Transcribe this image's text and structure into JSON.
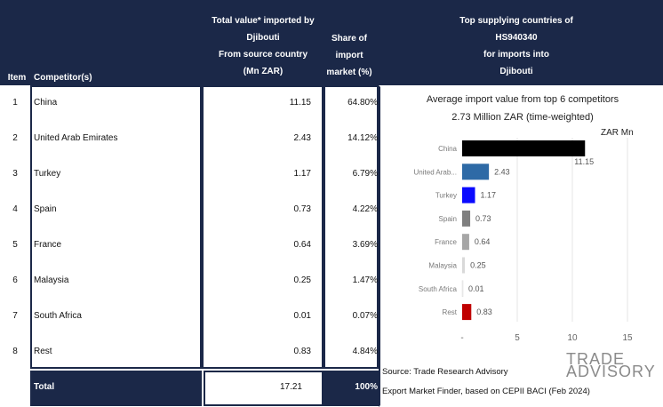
{
  "header": {
    "item": "Item",
    "competitor": "Competitor(s)",
    "total_lines": [
      "Total value* imported by",
      "Djibouti",
      "From source country",
      "(Mn ZAR)"
    ],
    "share_lines": [
      "Share of",
      "import",
      "market (%)"
    ],
    "top_lines": [
      "Top supplying countries of",
      "HS940340",
      "for imports into",
      "Djibouti"
    ]
  },
  "rows": [
    {
      "item": "1",
      "competitor": "China",
      "value": "11.15",
      "share": "64.80%"
    },
    {
      "item": "2",
      "competitor": "United Arab Emirates",
      "value": "2.43",
      "share": "14.12%"
    },
    {
      "item": "3",
      "competitor": "Turkey",
      "value": "1.17",
      "share": "6.79%"
    },
    {
      "item": "4",
      "competitor": "Spain",
      "value": "0.73",
      "share": "4.22%"
    },
    {
      "item": "5",
      "competitor": "France",
      "value": "0.64",
      "share": "3.69%"
    },
    {
      "item": "6",
      "competitor": "Malaysia",
      "value": "0.25",
      "share": "1.47%"
    },
    {
      "item": "7",
      "competitor": "South Africa",
      "value": "0.01",
      "share": "0.07%"
    },
    {
      "item": "8",
      "competitor": "Rest",
      "value": "0.83",
      "share": "4.84%"
    }
  ],
  "total": {
    "label": "Total",
    "value": "17.21",
    "share": "100%"
  },
  "chart_data": {
    "type": "bar",
    "orientation": "horizontal",
    "title": "Average import value from top 6 competitors",
    "subtitle": "2.73 Million ZAR (time-weighted)",
    "unit_label": "ZAR Mn",
    "categories": [
      "China",
      "United Arab...",
      "Turkey",
      "Spain",
      "France",
      "Malaysia",
      "South Africa",
      "Rest"
    ],
    "values": [
      11.15,
      2.43,
      1.17,
      0.73,
      0.64,
      0.25,
      0.01,
      0.83
    ],
    "value_labels": [
      "11.15",
      "2.43",
      "1.17",
      "0.73",
      "0.64",
      "0.25",
      "0.01",
      "0.83"
    ],
    "colors": [
      "#000000",
      "#2e6aa6",
      "#0a0aff",
      "#7f7f7f",
      "#a6a6a6",
      "#d9d9d9",
      "#f2f2f2",
      "#c00000"
    ],
    "xticks": [
      "-",
      "5",
      "10",
      "15"
    ],
    "xlim": [
      0,
      15
    ],
    "grid": true
  },
  "source": {
    "line1": "Source: Trade Research Advisory",
    "line2": "Export Market Finder, based on CEPII BACI (Feb 2024)"
  },
  "logo": {
    "line1": "TRADE",
    "line2": "ADVISORY"
  }
}
